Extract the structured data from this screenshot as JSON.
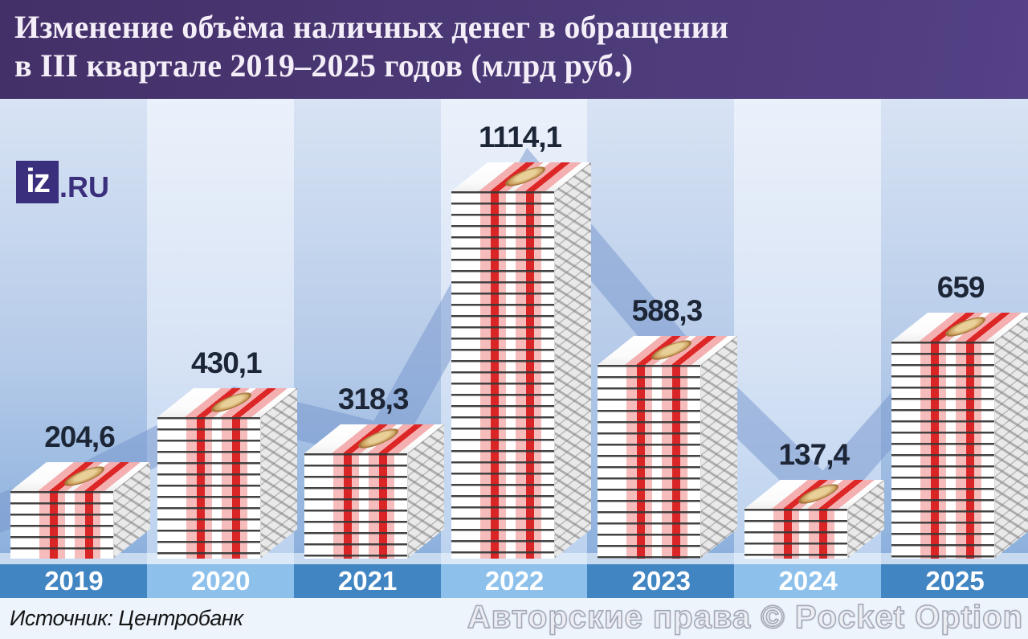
{
  "header": {
    "title_line1": "Изменение объёма наличных денег в обращении",
    "title_line2": "в III квартале 2019–2025 годов (млрд руб.)"
  },
  "logo": {
    "mark": "iz",
    "suffix": ".RU"
  },
  "chart_data": {
    "type": "bar",
    "title": "Изменение объёма наличных денег в обращении в III квартале 2019–2025 годов (млрд руб.)",
    "categories": [
      "2019",
      "2020",
      "2021",
      "2022",
      "2023",
      "2024",
      "2025"
    ],
    "values": [
      204.6,
      430.1,
      318.3,
      1114.1,
      588.3,
      137.4,
      659
    ],
    "value_labels": [
      "204,6",
      "430,1",
      "318,3",
      "1114,1",
      "588,3",
      "137,4",
      "659"
    ],
    "units": "млрд руб.",
    "xlabel": "",
    "ylabel": "",
    "ylim": [
      0,
      1200
    ],
    "grid": false,
    "legend": false,
    "bar_style": "isometric-banknote-stacks",
    "trend_band": true
  },
  "footer": {
    "source": "Источник: Центробанк",
    "watermark": "Авторские права © Pocket Option"
  },
  "colors": {
    "header_purple": "#46326e",
    "column_stripe_dark_top": "#d8e3f4",
    "column_stripe_dark_bottom": "#8aafdc",
    "column_stripe_light_top": "#ebf1fb",
    "column_stripe_light_bottom": "#bad1ee",
    "band_blue": "#7393cb",
    "stripe_red": "#d92525",
    "stripe_pink": "#f6bcbc",
    "value_label_navy": "#1d2637",
    "axis_dark": "#4285c3",
    "axis_light": "#8dc1ec",
    "year_text": "#ffffff",
    "logo_indigo": "#3a2f7c",
    "footer_bg": "#edf4fc"
  }
}
